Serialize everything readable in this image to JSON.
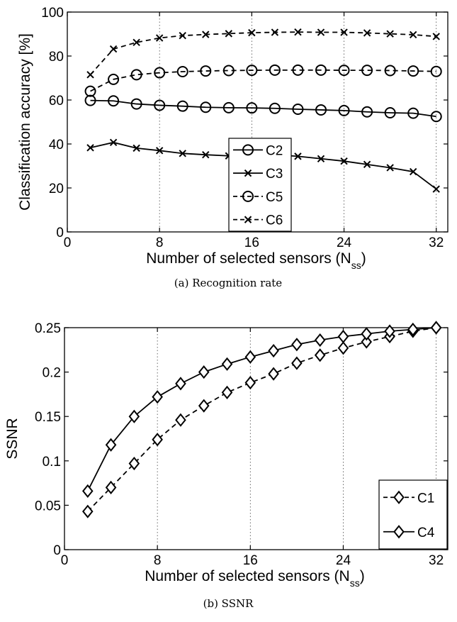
{
  "chart_data": [
    {
      "type": "line",
      "caption": "(a) Recognition rate",
      "xlabel": "Number of selected sensors (N",
      "xlabel_sub": "ss",
      "xlabel_close": ")",
      "ylabel": "Classification accuracy [%]",
      "xlim": [
        0,
        33
      ],
      "ylim": [
        0,
        100
      ],
      "xticks": [
        0,
        8,
        16,
        24,
        32
      ],
      "yticks": [
        0,
        20,
        40,
        60,
        80,
        100
      ],
      "grid": "vertical-dotted",
      "legend_position": "center",
      "x": [
        2,
        4,
        6,
        8,
        10,
        12,
        14,
        16,
        18,
        20,
        22,
        24,
        26,
        28,
        30,
        32
      ],
      "series": [
        {
          "name": "C2",
          "style": "solid",
          "marker": "circle",
          "values": [
            59.8,
            59.6,
            58.2,
            57.6,
            57.2,
            56.7,
            56.5,
            56.4,
            56.2,
            55.8,
            55.5,
            55.2,
            54.6,
            54.2,
            54.0,
            52.5
          ]
        },
        {
          "name": "C3",
          "style": "solid",
          "marker": "x",
          "values": [
            38.3,
            40.7,
            38.1,
            37.0,
            35.7,
            35.1,
            34.6,
            35.2,
            35.1,
            34.4,
            33.3,
            32.2,
            30.7,
            29.2,
            27.4,
            19.5
          ]
        },
        {
          "name": "C5",
          "style": "dashed",
          "marker": "circle",
          "values": [
            64.0,
            69.4,
            71.5,
            72.4,
            72.9,
            73.2,
            73.4,
            73.5,
            73.6,
            73.6,
            73.6,
            73.5,
            73.5,
            73.4,
            73.2,
            73.0
          ]
        },
        {
          "name": "C6",
          "style": "dashed",
          "marker": "x",
          "values": [
            71.5,
            83.2,
            86.2,
            88.2,
            89.3,
            89.8,
            90.2,
            90.6,
            90.8,
            90.9,
            90.8,
            90.8,
            90.5,
            90.1,
            89.7,
            88.9
          ]
        }
      ]
    },
    {
      "type": "line",
      "caption": "(b) SSNR",
      "xlabel": "Number of selected sensors (N",
      "xlabel_sub": "ss",
      "xlabel_close": ")",
      "ylabel": "SSNR",
      "xlim": [
        0,
        33
      ],
      "ylim": [
        0,
        0.25
      ],
      "xticks": [
        0,
        8,
        16,
        24,
        32
      ],
      "yticks": [
        0,
        0.05,
        0.1,
        0.15,
        0.2,
        0.25
      ],
      "ytick_labels": [
        "0",
        "0.05",
        "0.1",
        "0.15",
        "0.2",
        "0.25"
      ],
      "grid": "vertical-dotted",
      "legend_position": "bottom-right",
      "x": [
        2,
        4,
        6,
        8,
        10,
        12,
        14,
        16,
        18,
        20,
        22,
        24,
        26,
        28,
        30,
        32
      ],
      "series": [
        {
          "name": "C1",
          "style": "dashed",
          "marker": "diamond",
          "values": [
            0.043,
            0.07,
            0.097,
            0.124,
            0.146,
            0.162,
            0.177,
            0.188,
            0.198,
            0.21,
            0.219,
            0.227,
            0.234,
            0.24,
            0.246,
            0.25
          ]
        },
        {
          "name": "C4",
          "style": "solid",
          "marker": "diamond",
          "values": [
            0.066,
            0.118,
            0.15,
            0.172,
            0.187,
            0.2,
            0.209,
            0.217,
            0.224,
            0.231,
            0.236,
            0.24,
            0.243,
            0.246,
            0.248,
            0.25
          ]
        }
      ]
    }
  ]
}
